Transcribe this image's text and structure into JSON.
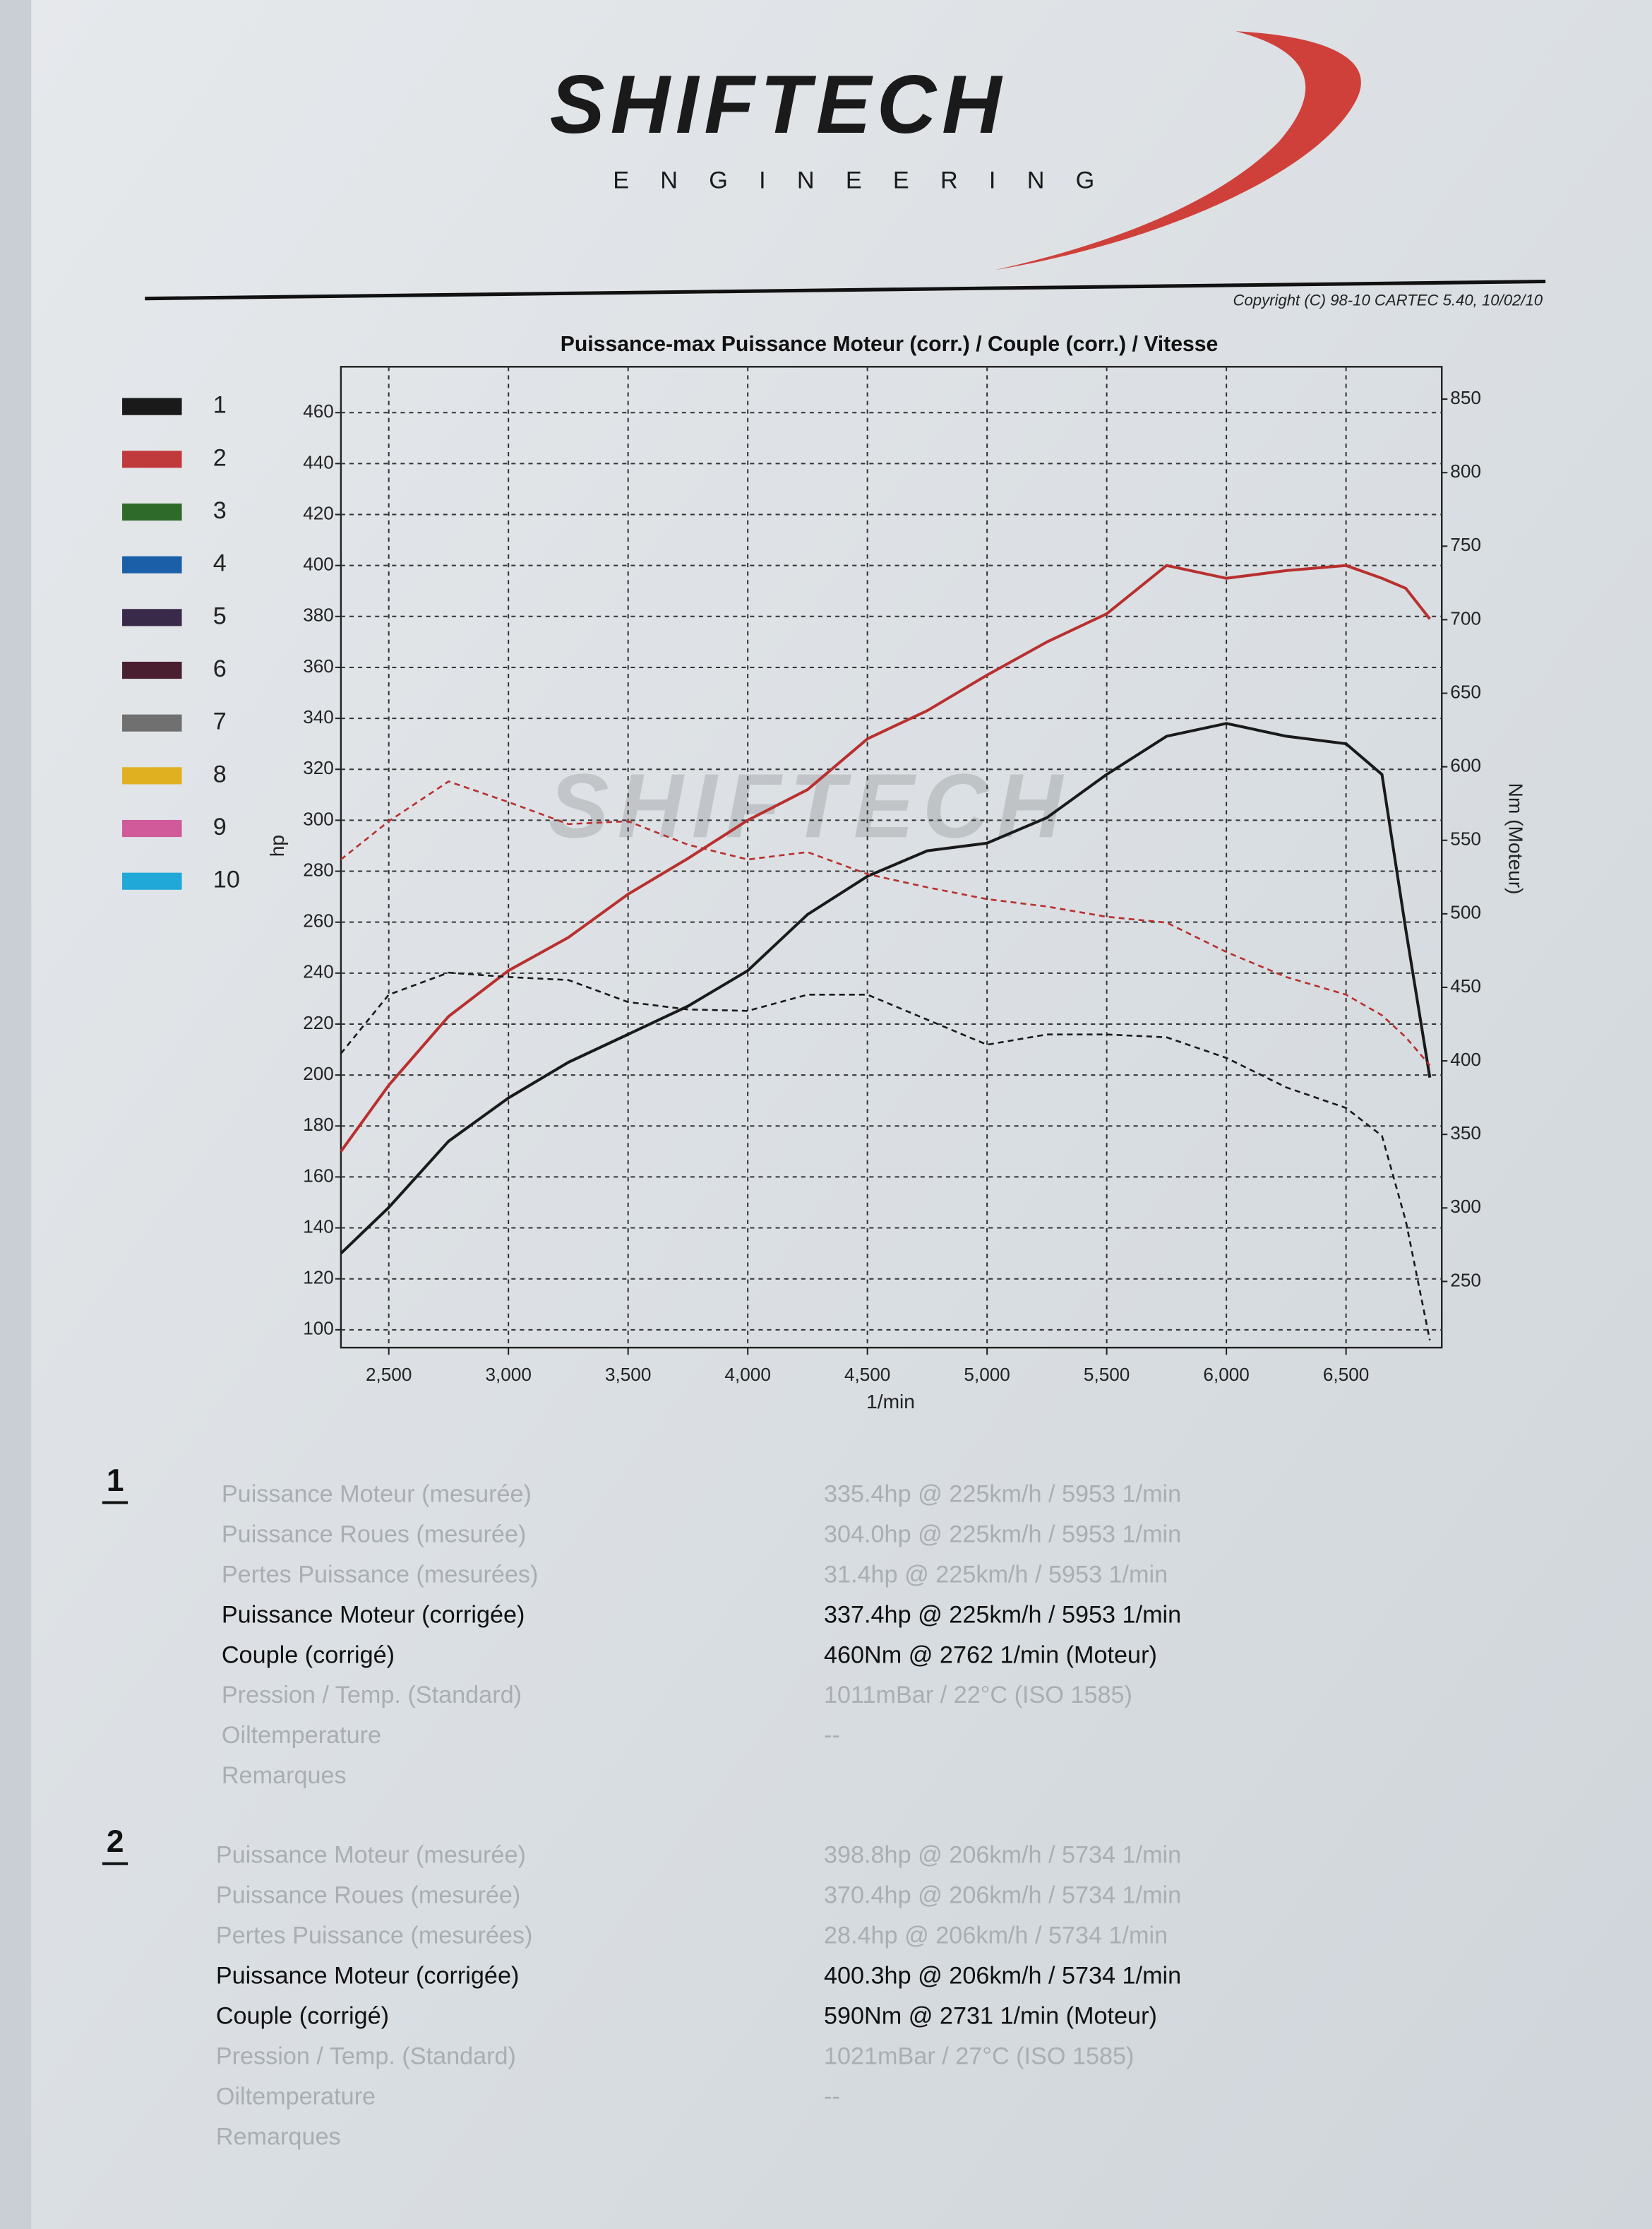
{
  "header": {
    "logo": "SHIFTECH",
    "tagline": "ENGINEERING",
    "copyright": "Copyright (C) 98-10 CARTEC 5.40, 10/02/10"
  },
  "chart_data": {
    "type": "line",
    "title": "Puissance-max Puissance Moteur (corr.) / Couple (corr.) / Vitesse",
    "x_label": "1/min",
    "y_label": "hp",
    "y2_label": "Nm (Moteur)",
    "x": [
      2300,
      2500,
      2750,
      3000,
      3250,
      3500,
      3750,
      4000,
      4250,
      4500,
      4750,
      5000,
      5250,
      5500,
      5750,
      6000,
      6250,
      6500,
      6650,
      6750,
      6850
    ],
    "xlim": [
      2300,
      6900
    ],
    "xticks": [
      {
        "value": 2500,
        "label": "2,500"
      },
      {
        "value": 3000,
        "label": "3,000"
      },
      {
        "value": 3500,
        "label": "3,500"
      },
      {
        "value": 4000,
        "label": "4,000"
      },
      {
        "value": 4500,
        "label": "4,500"
      },
      {
        "value": 5000,
        "label": "5,000"
      },
      {
        "value": 5500,
        "label": "5,500"
      },
      {
        "value": 6000,
        "label": "6,000"
      },
      {
        "value": 6500,
        "label": "6,500"
      }
    ],
    "ylim": [
      93,
      478
    ],
    "yticks": [
      100,
      120,
      140,
      160,
      180,
      200,
      220,
      240,
      260,
      280,
      300,
      320,
      340,
      360,
      380,
      400,
      420,
      440,
      460
    ],
    "y2lim": [
      205,
      872
    ],
    "y2ticks": [
      250,
      300,
      350,
      400,
      450,
      500,
      550,
      600,
      650,
      700,
      750,
      800,
      850
    ],
    "grid": true,
    "series": [
      {
        "color": "#1a1a1a",
        "linestyle": "solid",
        "values": [
          130,
          148,
          174,
          191,
          205,
          216,
          227,
          241,
          263,
          278,
          288,
          291,
          301,
          318,
          333,
          338,
          333,
          330,
          318,
          257,
          199
        ]
      },
      {
        "color": "#b8302f",
        "linestyle": "solid",
        "values": [
          170,
          196,
          223,
          241,
          254,
          271,
          285,
          300,
          312,
          332,
          343,
          357,
          370,
          381,
          400,
          395,
          398,
          400,
          395,
          391,
          379
        ]
      },
      {
        "color": "#1a1a1a",
        "linestyle": "dashed",
        "axis": "y2",
        "values": [
          405,
          445,
          460,
          457,
          455,
          440,
          435,
          434,
          445,
          445,
          428,
          411,
          418,
          418,
          416,
          402,
          382,
          368,
          349,
          291,
          210
        ]
      },
      {
        "color": "#b8302f",
        "linestyle": "dashed",
        "axis": "y2",
        "values": [
          537,
          563,
          590,
          576,
          561,
          563,
          547,
          537,
          542,
          527,
          518,
          510,
          505,
          498,
          494,
          474,
          457,
          445,
          431,
          416,
          397
        ]
      }
    ],
    "legend": [
      {
        "name": "1",
        "color": "#1a1a1a"
      },
      {
        "name": "2",
        "color": "#c0393b"
      },
      {
        "name": "3",
        "color": "#2e6b2a"
      },
      {
        "name": "4",
        "color": "#1a5fa8"
      },
      {
        "name": "5",
        "color": "#3a2a4a"
      },
      {
        "name": "6",
        "color": "#4a2030"
      },
      {
        "name": "7",
        "color": "#707070"
      },
      {
        "name": "8",
        "color": "#e0b020"
      },
      {
        "name": "9",
        "color": "#d05a9a"
      },
      {
        "name": "10",
        "color": "#20a8d8"
      }
    ]
  },
  "results": [
    {
      "run": "1",
      "rows": [
        [
          "Puissance Moteur (mesurée)",
          "335.4hp @ 225km/h / 5953 1/min"
        ],
        [
          "Puissance Roues (mesurée)",
          "304.0hp @ 225km/h / 5953 1/min"
        ],
        [
          "Pertes Puissance (mesurées)",
          "31.4hp @ 225km/h / 5953 1/min"
        ],
        [
          "Puissance Moteur (corrigée)",
          "337.4hp @ 225km/h / 5953 1/min"
        ],
        [
          "Couple (corrigé)",
          "460Nm @ 2762 1/min (Moteur)"
        ],
        [
          "Pression / Temp. (Standard)",
          "1011mBar / 22°C    (ISO 1585)"
        ],
        [
          "Oiltemperature",
          "--"
        ],
        [
          "Remarques"
        ]
      ]
    },
    {
      "run": "2",
      "rows": [
        [
          "Puissance Moteur (mesurée)",
          "398.8hp @ 206km/h / 5734 1/min"
        ],
        [
          "Puissance Roues (mesurée)",
          "370.4hp @ 206km/h / 5734 1/min"
        ],
        [
          "Pertes Puissance (mesurées)",
          "28.4hp @ 206km/h / 5734 1/min"
        ],
        [
          "Puissance Moteur (corrigée)",
          "400.3hp @ 206km/h / 5734 1/min"
        ],
        [
          "Couple (corrigé)",
          "590Nm @ 2731 1/min (Moteur)"
        ],
        [
          "Pression / Temp. (Standard)",
          "1021mBar / 27°C    (ISO 1585)"
        ],
        [
          "Oiltemperature",
          "--"
        ],
        [
          "Remarques"
        ]
      ]
    }
  ]
}
